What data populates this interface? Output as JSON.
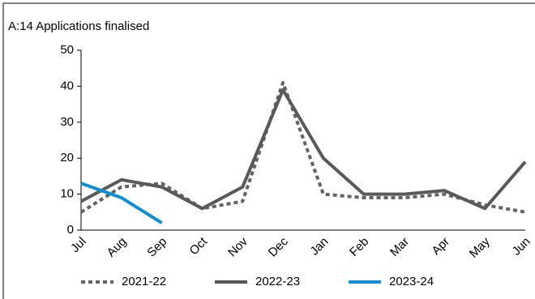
{
  "chart_data": {
    "type": "line",
    "title": "A:14 Applications finalised",
    "categories": [
      "Jul",
      "Aug",
      "Sep",
      "Oct",
      "Nov",
      "Dec",
      "Jan",
      "Feb",
      "Mar",
      "Apr",
      "May",
      "Jun"
    ],
    "series": [
      {
        "name": "2021-22",
        "color": "#636363",
        "dash": "dotted",
        "values": [
          5,
          12,
          13,
          6,
          8,
          41,
          10,
          9,
          9,
          10,
          7,
          5
        ]
      },
      {
        "name": "2022-23",
        "color": "#595959",
        "dash": "solid",
        "values": [
          8,
          14,
          12,
          6,
          12,
          39,
          20,
          10,
          10,
          11,
          6,
          19
        ]
      },
      {
        "name": "2023-24",
        "color": "#0f8fd2",
        "dash": "solid",
        "values": [
          13,
          9,
          2,
          null,
          null,
          null,
          null,
          null,
          null,
          null,
          null,
          null
        ]
      }
    ],
    "ylim": [
      0,
      50
    ],
    "yticks": [
      0,
      10,
      20,
      30,
      40,
      50
    ],
    "grid": false,
    "legend": "bottom"
  }
}
